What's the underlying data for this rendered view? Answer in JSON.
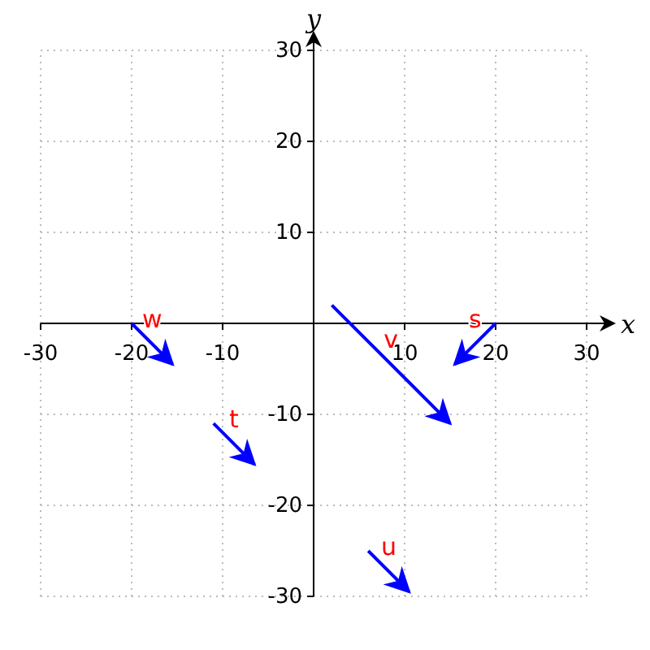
{
  "chart_data": {
    "type": "line",
    "xlabel": "x",
    "ylabel": "y",
    "xlim": [
      -30,
      30
    ],
    "ylim": [
      -30,
      30
    ],
    "xticks": [
      -30,
      -20,
      -10,
      10,
      20,
      30
    ],
    "yticks": [
      -30,
      -20,
      -10,
      10,
      20,
      30
    ],
    "grid": true,
    "series": [
      {
        "name": "w",
        "color": "#0000ff",
        "x": [
          -20,
          -15.5
        ],
        "values": [
          0,
          -4.5
        ]
      },
      {
        "name": "t",
        "color": "#0000ff",
        "x": [
          -11,
          -6.5
        ],
        "values": [
          -11,
          -15.5
        ]
      },
      {
        "name": "u",
        "color": "#0000ff",
        "x": [
          6,
          10.5
        ],
        "values": [
          -25,
          -29.5
        ]
      },
      {
        "name": "v",
        "color": "#0000ff",
        "x": [
          2,
          15
        ],
        "values": [
          2,
          -11
        ]
      },
      {
        "name": "s",
        "color": "#0000ff",
        "x": [
          20,
          15.5
        ],
        "values": [
          0,
          -4.5
        ]
      }
    ]
  }
}
